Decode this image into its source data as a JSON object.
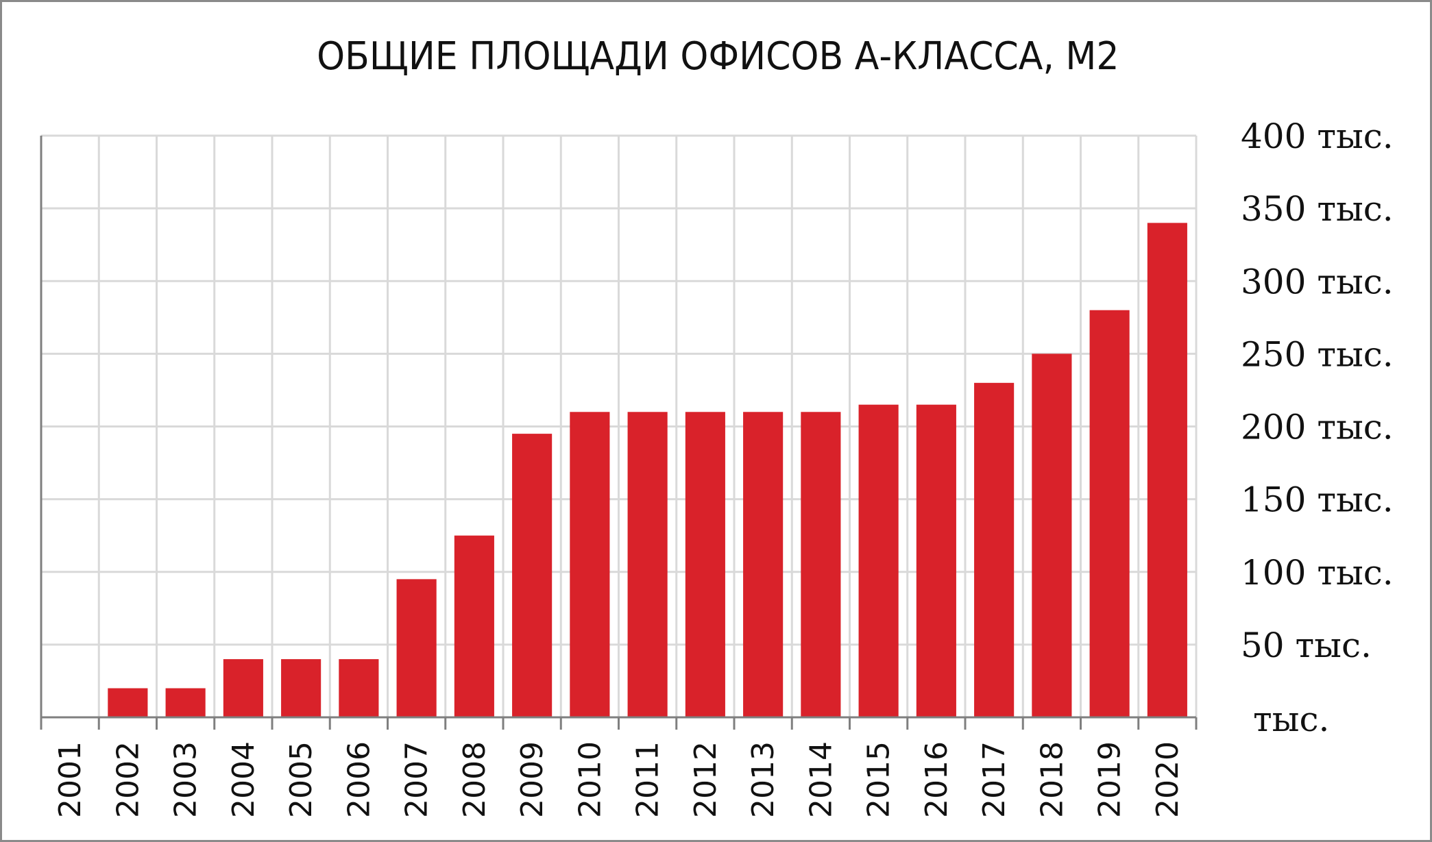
{
  "chart_data": {
    "type": "bar",
    "title": "ОБЩИЕ ПЛОЩАДИ ОФИСОВ А-КЛАССА, М2",
    "xlabel": "",
    "ylabel": "",
    "categories": [
      "2001",
      "2002",
      "2003",
      "2004",
      "2005",
      "2006",
      "2007",
      "2008",
      "2009",
      "2010",
      "2011",
      "2012",
      "2013",
      "2014",
      "2015",
      "2016",
      "2017",
      "2018",
      "2019",
      "2020"
    ],
    "values": [
      0,
      20000,
      20000,
      40000,
      40000,
      40000,
      95000,
      125000,
      195000,
      210000,
      210000,
      210000,
      210000,
      210000,
      215000,
      215000,
      230000,
      250000,
      280000,
      340000
    ],
    "ylim": [
      0,
      400000
    ],
    "y_ticks": [
      0,
      50000,
      100000,
      150000,
      200000,
      250000,
      300000,
      350000,
      400000
    ],
    "y_tick_labels": [
      "тыс.",
      "50 тыс.",
      "100 тыс.",
      "150 тыс.",
      "200 тыс.",
      "250 тыс.",
      "300 тыс.",
      "350 тыс.",
      "400 тыс."
    ],
    "y_axis_side": "right",
    "x_tick_rotation": "vertical",
    "grid": true,
    "legend": "none",
    "colors": {
      "bar": "#d9222a",
      "grid": "#d9d9d9",
      "axis": "#7f7f7f"
    }
  }
}
